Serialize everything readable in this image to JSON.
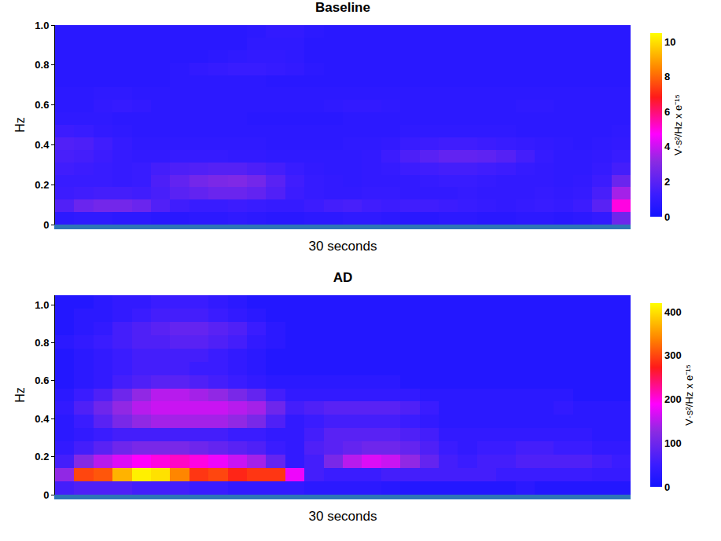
{
  "chart_data": [
    {
      "type": "heatmap",
      "title": "Baseline",
      "x_label": "30 seconds",
      "y_label": "Hz",
      "colorbar_title": "V·s²/Hz x e⁻¹⁵",
      "tick_labels": "y",
      "xlim": [
        0,
        30
      ],
      "ylim": [
        0,
        1
      ],
      "yticks": [
        0,
        0.2,
        0.4,
        0.6,
        0.8,
        {
          "value": 1,
          "label": "1.0"
        }
      ],
      "zlim": [
        0,
        10.5
      ],
      "zticks": [
        0,
        2,
        4,
        6,
        8,
        10
      ],
      "x": [
        0.5,
        1.5,
        2.5,
        3.5,
        4.5,
        5.5,
        6.5,
        7.5,
        8.5,
        9.5,
        10.5,
        11.5,
        12.5,
        13.5,
        14.5,
        15.5,
        16.5,
        17.5,
        18.5,
        19.5,
        20.5,
        21.5,
        22.5,
        23.5,
        24.5,
        25.5,
        26.5,
        27.5,
        28.5,
        29.5
      ],
      "y": [
        0.03125,
        0.09375,
        0.15625,
        0.21875,
        0.28125,
        0.34375,
        0.40625,
        0.46875,
        0.53125,
        0.59375,
        0.65625,
        0.71875,
        0.78125,
        0.84375,
        0.90625,
        0.96875
      ],
      "z": [
        [
          0.8,
          0.9,
          0.9,
          0.8,
          0.8,
          0.7,
          0.7,
          0.8,
          0.8,
          0.9,
          0.8,
          0.7,
          0.7,
          0.8,
          0.8,
          0.9,
          0.9,
          0.8,
          0.7,
          0.7,
          0.8,
          0.8,
          0.7,
          0.7,
          0.8,
          0.8,
          0.7,
          0.8,
          1.0,
          2.5
        ],
        [
          1.8,
          2.4,
          2.6,
          2.6,
          2.4,
          1.8,
          1.4,
          1.2,
          1.2,
          1.3,
          1.2,
          1.1,
          1.1,
          1.3,
          1.5,
          1.6,
          1.4,
          1.3,
          1.4,
          1.4,
          1.3,
          1.2,
          1.1,
          1.0,
          1.1,
          1.2,
          1.1,
          1.3,
          2.0,
          5.0
        ],
        [
          1.3,
          1.4,
          1.5,
          1.5,
          1.4,
          1.6,
          2.0,
          2.2,
          2.4,
          2.4,
          2.2,
          1.8,
          1.3,
          1.1,
          1.0,
          1.0,
          1.1,
          1.1,
          1.0,
          1.0,
          1.0,
          1.1,
          1.0,
          1.0,
          1.0,
          1.1,
          1.0,
          1.1,
          1.6,
          3.5
        ],
        [
          1.2,
          1.2,
          1.2,
          1.1,
          1.2,
          1.7,
          2.2,
          2.6,
          2.8,
          2.9,
          2.6,
          2.0,
          1.4,
          1.1,
          1.0,
          0.9,
          1.0,
          1.0,
          1.0,
          1.1,
          1.2,
          1.2,
          1.1,
          1.0,
          1.0,
          1.0,
          0.9,
          1.0,
          1.3,
          2.4
        ],
        [
          1.4,
          1.3,
          1.2,
          1.1,
          1.2,
          1.5,
          1.7,
          1.8,
          1.9,
          1.9,
          1.7,
          1.5,
          1.2,
          1.0,
          0.9,
          0.9,
          1.0,
          1.1,
          1.3,
          1.4,
          1.5,
          1.5,
          1.4,
          1.3,
          1.1,
          1.0,
          0.9,
          0.9,
          1.1,
          1.5
        ],
        [
          1.6,
          1.5,
          1.3,
          1.1,
          1.0,
          1.0,
          1.1,
          1.1,
          1.1,
          1.0,
          1.0,
          0.9,
          0.9,
          0.9,
          0.9,
          0.9,
          1.0,
          1.3,
          1.7,
          2.0,
          2.2,
          2.2,
          2.1,
          1.9,
          1.5,
          1.1,
          0.9,
          0.9,
          1.0,
          1.2
        ],
        [
          1.8,
          1.7,
          1.4,
          1.1,
          0.9,
          0.9,
          0.9,
          0.9,
          0.9,
          0.9,
          0.9,
          0.8,
          0.8,
          0.8,
          0.8,
          0.9,
          0.9,
          1.0,
          1.2,
          1.3,
          1.4,
          1.4,
          1.3,
          1.2,
          1.1,
          1.0,
          0.9,
          0.8,
          0.9,
          1.0
        ],
        [
          1.3,
          1.2,
          1.0,
          0.9,
          0.8,
          0.8,
          0.8,
          0.8,
          0.8,
          0.8,
          0.8,
          0.8,
          0.8,
          0.8,
          0.8,
          0.8,
          0.8,
          0.8,
          0.9,
          0.9,
          0.9,
          0.9,
          0.9,
          0.9,
          0.8,
          0.8,
          0.8,
          0.8,
          0.8,
          0.9
        ],
        [
          0.9,
          0.9,
          0.9,
          0.8,
          0.8,
          0.8,
          0.8,
          0.8,
          0.8,
          0.8,
          0.7,
          0.7,
          0.7,
          0.7,
          0.7,
          0.8,
          0.8,
          0.8,
          0.8,
          0.8,
          0.8,
          0.8,
          0.8,
          0.8,
          0.8,
          0.8,
          0.8,
          0.8,
          0.8,
          0.8
        ],
        [
          0.8,
          0.8,
          1.0,
          1.1,
          1.0,
          0.8,
          0.8,
          0.8,
          0.8,
          0.8,
          0.8,
          0.8,
          0.8,
          0.8,
          0.9,
          1.0,
          1.0,
          0.9,
          0.8,
          0.8,
          0.8,
          0.8,
          0.8,
          0.8,
          0.9,
          0.9,
          0.8,
          0.8,
          0.8,
          0.8
        ],
        [
          0.8,
          0.8,
          0.9,
          0.9,
          0.8,
          0.8,
          0.8,
          0.8,
          0.8,
          0.8,
          0.8,
          0.8,
          0.8,
          0.8,
          0.8,
          0.8,
          0.8,
          0.8,
          0.8,
          0.8,
          0.8,
          0.8,
          0.8,
          0.8,
          0.8,
          0.8,
          0.8,
          0.8,
          0.8,
          0.8
        ],
        [
          0.7,
          0.7,
          0.7,
          0.7,
          0.7,
          0.7,
          0.8,
          0.8,
          0.8,
          0.8,
          0.8,
          0.7,
          0.7,
          0.7,
          0.7,
          0.7,
          0.7,
          0.7,
          0.7,
          0.7,
          0.7,
          0.7,
          0.7,
          0.7,
          0.7,
          0.7,
          0.7,
          0.7,
          0.7,
          0.7
        ],
        [
          0.7,
          0.7,
          0.7,
          0.7,
          0.7,
          0.7,
          0.8,
          1.0,
          1.1,
          1.2,
          1.2,
          1.1,
          1.0,
          0.8,
          0.7,
          0.7,
          0.7,
          0.7,
          0.7,
          0.7,
          0.7,
          0.7,
          0.7,
          0.7,
          0.7,
          0.7,
          0.7,
          0.7,
          0.7,
          0.7
        ],
        [
          0.7,
          0.7,
          0.7,
          0.7,
          0.7,
          0.7,
          0.7,
          0.7,
          0.8,
          0.9,
          1.0,
          1.0,
          0.9,
          0.7,
          0.7,
          0.7,
          0.7,
          0.7,
          0.7,
          0.7,
          0.7,
          0.7,
          0.7,
          0.7,
          0.7,
          0.7,
          0.7,
          0.7,
          0.7,
          0.7
        ],
        [
          0.7,
          0.7,
          0.7,
          0.7,
          0.7,
          0.7,
          0.7,
          0.7,
          0.7,
          0.7,
          0.9,
          0.9,
          0.9,
          0.7,
          0.7,
          0.7,
          0.7,
          0.7,
          0.7,
          0.7,
          0.7,
          0.7,
          0.7,
          0.7,
          0.7,
          0.7,
          0.7,
          0.7,
          0.7,
          0.7
        ],
        [
          0.7,
          0.7,
          0.7,
          0.7,
          0.7,
          0.7,
          0.7,
          0.7,
          0.7,
          0.7,
          0.8,
          1.0,
          1.0,
          0.8,
          0.7,
          0.7,
          0.7,
          0.7,
          0.7,
          0.7,
          0.7,
          0.7,
          0.7,
          0.7,
          0.7,
          0.7,
          0.7,
          0.7,
          0.7,
          0.7
        ]
      ]
    },
    {
      "type": "heatmap",
      "title": "AD",
      "x_label": "30 seconds",
      "y_label": "Hz",
      "colorbar_title": "V·s²/Hz x e⁻¹⁵",
      "tick_labels": "y",
      "xlim": [
        0,
        30
      ],
      "ylim": [
        0,
        1.05
      ],
      "yticks": [
        0,
        0.2,
        0.4,
        0.6,
        0.8,
        {
          "value": 1,
          "label": "1.0"
        }
      ],
      "zlim": [
        0,
        420
      ],
      "zticks": [
        0,
        100,
        200,
        300,
        400
      ],
      "x": [
        0.5,
        1.5,
        2.5,
        3.5,
        4.5,
        5.5,
        6.5,
        7.5,
        8.5,
        9.5,
        10.5,
        11.5,
        12.5,
        13.5,
        14.5,
        15.5,
        16.5,
        17.5,
        18.5,
        19.5,
        20.5,
        21.5,
        22.5,
        23.5,
        24.5,
        25.5,
        26.5,
        27.5,
        28.5,
        29.5
      ],
      "y": [
        0.035,
        0.105,
        0.175,
        0.245,
        0.315,
        0.385,
        0.455,
        0.525,
        0.595,
        0.665,
        0.735,
        0.805,
        0.875,
        0.945,
        1.015
      ],
      "z": [
        [
          60,
          70,
          70,
          70,
          60,
          60,
          60,
          50,
          50,
          40,
          40,
          40,
          40,
          30,
          30,
          30,
          30,
          25,
          20,
          20,
          20,
          20,
          20,
          20,
          30,
          20,
          20,
          20,
          20,
          20
        ],
        [
          130,
          300,
          310,
          370,
          410,
          400,
          340,
          290,
          300,
          280,
          290,
          290,
          180,
          60,
          50,
          50,
          50,
          60,
          60,
          60,
          60,
          60,
          60,
          50,
          50,
          50,
          50,
          50,
          45,
          45
        ],
        [
          60,
          120,
          150,
          170,
          190,
          200,
          210,
          200,
          180,
          160,
          140,
          90,
          40,
          60,
          110,
          150,
          170,
          160,
          130,
          90,
          60,
          50,
          60,
          60,
          70,
          70,
          70,
          70,
          60,
          50
        ],
        [
          40,
          60,
          80,
          100,
          110,
          110,
          110,
          100,
          90,
          80,
          70,
          50,
          40,
          70,
          80,
          90,
          100,
          100,
          90,
          70,
          50,
          40,
          50,
          50,
          60,
          60,
          50,
          50,
          40,
          40
        ],
        [
          30,
          40,
          50,
          60,
          60,
          60,
          60,
          60,
          60,
          50,
          50,
          40,
          40,
          60,
          80,
          80,
          80,
          80,
          70,
          60,
          40,
          40,
          40,
          40,
          40,
          40,
          40,
          40,
          30,
          30
        ],
        [
          30,
          50,
          80,
          110,
          130,
          140,
          140,
          140,
          140,
          130,
          110,
          70,
          40,
          50,
          60,
          60,
          60,
          60,
          50,
          40,
          30,
          30,
          30,
          30,
          30,
          30,
          30,
          30,
          30,
          30
        ],
        [
          40,
          70,
          100,
          130,
          150,
          160,
          160,
          160,
          160,
          150,
          140,
          100,
          60,
          70,
          80,
          80,
          80,
          80,
          70,
          50,
          30,
          30,
          30,
          30,
          30,
          30,
          40,
          30,
          30,
          30
        ],
        [
          30,
          50,
          70,
          100,
          130,
          150,
          150,
          140,
          130,
          110,
          90,
          60,
          40,
          40,
          40,
          40,
          40,
          40,
          40,
          30,
          30,
          30,
          30,
          30,
          30,
          30,
          30,
          20,
          20,
          20
        ],
        [
          20,
          30,
          40,
          60,
          70,
          80,
          80,
          70,
          60,
          50,
          40,
          30,
          30,
          30,
          30,
          30,
          30,
          30,
          20,
          20,
          20,
          20,
          20,
          20,
          20,
          20,
          20,
          20,
          20,
          20
        ],
        [
          20,
          30,
          40,
          50,
          60,
          60,
          60,
          50,
          50,
          40,
          30,
          20,
          20,
          20,
          20,
          20,
          20,
          20,
          20,
          20,
          20,
          20,
          20,
          20,
          20,
          20,
          20,
          20,
          20,
          20
        ],
        [
          20,
          30,
          40,
          50,
          60,
          60,
          60,
          60,
          50,
          40,
          30,
          20,
          20,
          20,
          20,
          20,
          20,
          20,
          20,
          20,
          20,
          20,
          20,
          20,
          20,
          20,
          20,
          20,
          20,
          20
        ],
        [
          30,
          40,
          50,
          60,
          70,
          70,
          80,
          80,
          70,
          60,
          40,
          30,
          20,
          20,
          20,
          20,
          20,
          20,
          20,
          20,
          20,
          20,
          20,
          20,
          20,
          20,
          20,
          20,
          20,
          20
        ],
        [
          20,
          30,
          40,
          60,
          70,
          80,
          90,
          90,
          80,
          70,
          50,
          30,
          20,
          20,
          20,
          20,
          20,
          20,
          20,
          20,
          20,
          20,
          20,
          20,
          20,
          20,
          20,
          20,
          20,
          20
        ],
        [
          20,
          30,
          30,
          40,
          50,
          60,
          60,
          60,
          50,
          40,
          30,
          20,
          20,
          20,
          20,
          20,
          20,
          20,
          20,
          20,
          20,
          20,
          20,
          20,
          20,
          20,
          20,
          20,
          20,
          20
        ],
        [
          20,
          20,
          30,
          40,
          40,
          50,
          50,
          50,
          40,
          30,
          20,
          20,
          20,
          20,
          20,
          20,
          20,
          20,
          20,
          20,
          20,
          20,
          20,
          20,
          20,
          20,
          20,
          20,
          20,
          20
        ]
      ]
    }
  ]
}
